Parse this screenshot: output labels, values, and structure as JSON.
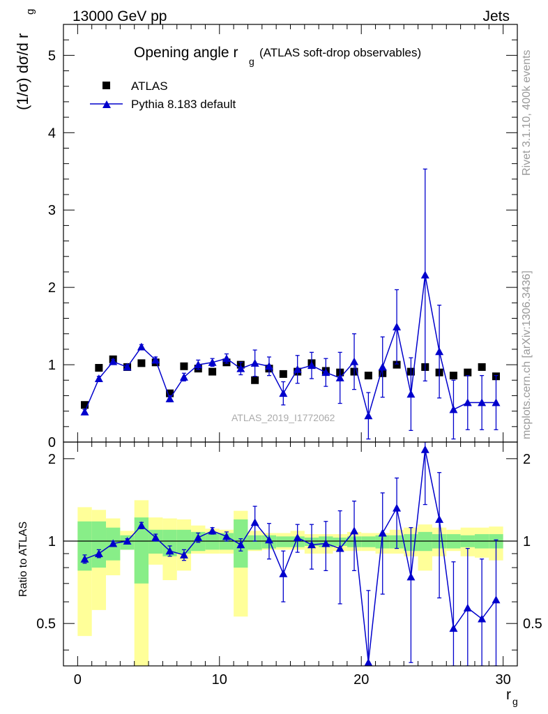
{
  "header": {
    "energy_label": "13000 GeV pp",
    "process_label": "Jets"
  },
  "side_text": {
    "rivet": "Rivet 3.1.10,  400k events",
    "mcplots": "mcplots.cern.ch [arXiv:1306.3436]"
  },
  "main_title": {
    "text": "Opening angle r",
    "sub": "g",
    "extra": "(ATLAS soft-drop observables)"
  },
  "watermark": "ATLAS_2019_I1772062",
  "ylabel": {
    "prefix": "(1/σ) dσ/d r",
    "sub": "g"
  },
  "ratio_ylabel": "Ratio to ATLAS",
  "xlabel": {
    "main": "r",
    "sub": "g"
  },
  "legend": {
    "data_label": "ATLAS",
    "mc_label": "Pythia 8.183 default"
  },
  "colors": {
    "mc": "#0000cc",
    "band_inner": "#88ee88",
    "band_outer": "#ffff99",
    "data": "#000000"
  },
  "chart_data": {
    "type": "scatter",
    "x_range": [
      -1,
      31
    ],
    "main_y_range": [
      0,
      5.4
    ],
    "ratio_y_range": [
      0.35,
      2.3
    ],
    "main_y_ticks": [
      {
        "v": 0,
        "label": "0"
      },
      {
        "v": 1,
        "label": "1"
      },
      {
        "v": 2,
        "label": "2"
      },
      {
        "v": 3,
        "label": "3"
      },
      {
        "v": 4,
        "label": "4"
      },
      {
        "v": 5,
        "label": "5"
      }
    ],
    "ratio_y_ticks": [
      {
        "v": 0.5,
        "label": "0.5"
      },
      {
        "v": 1,
        "label": "1"
      },
      {
        "v": 2,
        "label": "2"
      }
    ],
    "x_ticks": [
      {
        "v": 0,
        "label": "0"
      },
      {
        "v": 10,
        "label": "10"
      },
      {
        "v": 20,
        "label": "20"
      },
      {
        "v": 30,
        "label": "30"
      }
    ],
    "bins": [
      [
        0,
        1
      ],
      [
        1,
        2
      ],
      [
        2,
        3
      ],
      [
        3,
        4
      ],
      [
        4,
        5
      ],
      [
        5,
        6
      ],
      [
        6,
        7
      ],
      [
        7,
        8
      ],
      [
        8,
        9
      ],
      [
        9,
        10
      ],
      [
        10,
        11
      ],
      [
        11,
        12
      ],
      [
        12,
        13
      ],
      [
        13,
        14
      ],
      [
        14,
        15
      ],
      [
        15,
        16
      ],
      [
        16,
        17
      ],
      [
        17,
        18
      ],
      [
        18,
        19
      ],
      [
        19,
        20
      ],
      [
        20,
        21
      ],
      [
        21,
        22
      ],
      [
        22,
        23
      ],
      [
        23,
        24
      ],
      [
        24,
        25
      ],
      [
        25,
        26
      ],
      [
        26,
        27
      ],
      [
        27,
        28
      ],
      [
        28,
        29
      ],
      [
        29,
        30
      ]
    ],
    "data_values": [
      0.48,
      0.96,
      1.07,
      0.97,
      1.02,
      1.03,
      0.63,
      0.98,
      0.95,
      0.91,
      1.03,
      1.0,
      0.8,
      0.95,
      0.88,
      0.91,
      1.02,
      0.92,
      0.9,
      0.91,
      0.86,
      0.89,
      1.0,
      0.91,
      0.97,
      0.9,
      0.86,
      0.9,
      0.97,
      0.85
    ],
    "mc_values": [
      0.39,
      0.82,
      1.04,
      0.97,
      1.23,
      1.06,
      0.56,
      0.84,
      1.0,
      1.03,
      1.08,
      0.95,
      1.02,
      0.98,
      0.63,
      0.94,
      0.99,
      0.9,
      0.83,
      1.04,
      0.34,
      0.97,
      1.49,
      0.62,
      2.16,
      1.17,
      0.42,
      0.51,
      0.51,
      0.51
    ],
    "mc_errors": [
      0.03,
      0.03,
      0.03,
      0.03,
      0.03,
      0.04,
      0.04,
      0.05,
      0.06,
      0.05,
      0.06,
      0.08,
      0.17,
      0.12,
      0.15,
      0.18,
      0.17,
      0.18,
      0.33,
      0.36,
      0.3,
      0.39,
      0.48,
      0.47,
      1.37,
      0.6,
      0.38,
      0.35,
      0.35,
      0.35
    ],
    "ratio_values": [
      0.86,
      0.9,
      0.98,
      1.0,
      1.14,
      1.03,
      0.92,
      0.89,
      1.03,
      1.09,
      1.04,
      0.97,
      1.17,
      1.01,
      0.76,
      1.03,
      0.97,
      0.98,
      0.94,
      1.09,
      0.36,
      1.07,
      1.32,
      0.74,
      2.16,
      1.2,
      0.48,
      0.57,
      0.52,
      0.61
    ],
    "ratio_errors": [
      0.03,
      0.03,
      0.02,
      0.02,
      0.03,
      0.03,
      0.04,
      0.04,
      0.04,
      0.03,
      0.04,
      0.05,
      0.17,
      0.15,
      0.16,
      0.12,
      0.18,
      0.2,
      0.35,
      0.31,
      0.3,
      0.43,
      0.38,
      0.38,
      0.8,
      0.58,
      0.36,
      0.37,
      0.34,
      0.4
    ],
    "band_inner": [
      [
        0.78,
        1.18
      ],
      [
        0.8,
        1.18
      ],
      [
        0.85,
        1.12
      ],
      [
        0.93,
        1.05
      ],
      [
        0.7,
        1.22
      ],
      [
        0.9,
        1.1
      ],
      [
        0.88,
        1.1
      ],
      [
        0.9,
        1.1
      ],
      [
        0.92,
        1.08
      ],
      [
        0.93,
        1.07
      ],
      [
        0.93,
        1.07
      ],
      [
        0.8,
        1.2
      ],
      [
        0.93,
        1.05
      ],
      [
        0.94,
        1.05
      ],
      [
        0.95,
        1.04
      ],
      [
        0.95,
        1.04
      ],
      [
        0.96,
        1.03
      ],
      [
        0.95,
        1.04
      ],
      [
        0.96,
        1.03
      ],
      [
        0.95,
        1.04
      ],
      [
        0.95,
        1.04
      ],
      [
        0.94,
        1.05
      ],
      [
        0.94,
        1.05
      ],
      [
        0.92,
        1.06
      ],
      [
        0.92,
        1.08
      ],
      [
        0.94,
        1.06
      ],
      [
        0.94,
        1.06
      ],
      [
        0.95,
        1.05
      ],
      [
        0.94,
        1.06
      ],
      [
        0.94,
        1.06
      ]
    ],
    "band_outer": [
      [
        0.45,
        1.33
      ],
      [
        0.56,
        1.3
      ],
      [
        0.75,
        1.21
      ],
      [
        0.93,
        1.09
      ],
      [
        0.35,
        1.41
      ],
      [
        0.82,
        1.22
      ],
      [
        0.72,
        1.21
      ],
      [
        0.78,
        1.2
      ],
      [
        0.9,
        1.14
      ],
      [
        0.9,
        1.11
      ],
      [
        0.9,
        1.1
      ],
      [
        0.53,
        1.29
      ],
      [
        0.92,
        1.09
      ],
      [
        0.93,
        1.07
      ],
      [
        0.93,
        1.07
      ],
      [
        0.93,
        1.09
      ],
      [
        0.9,
        1.06
      ],
      [
        0.9,
        1.06
      ],
      [
        0.92,
        1.06
      ],
      [
        0.92,
        1.08
      ],
      [
        0.92,
        1.07
      ],
      [
        0.9,
        1.07
      ],
      [
        0.9,
        1.1
      ],
      [
        0.88,
        1.12
      ],
      [
        0.78,
        1.15
      ],
      [
        0.88,
        1.12
      ],
      [
        0.92,
        1.1
      ],
      [
        0.88,
        1.12
      ],
      [
        0.87,
        1.12
      ],
      [
        0.85,
        1.13
      ]
    ],
    "title": "Opening angle r_g (ATLAS soft-drop observables)",
    "xlabel": "r_g",
    "ylabel": "(1/σ) dσ/d r_g",
    "ratio_ylabel": "Ratio to ATLAS",
    "legend_position": "top-left"
  }
}
